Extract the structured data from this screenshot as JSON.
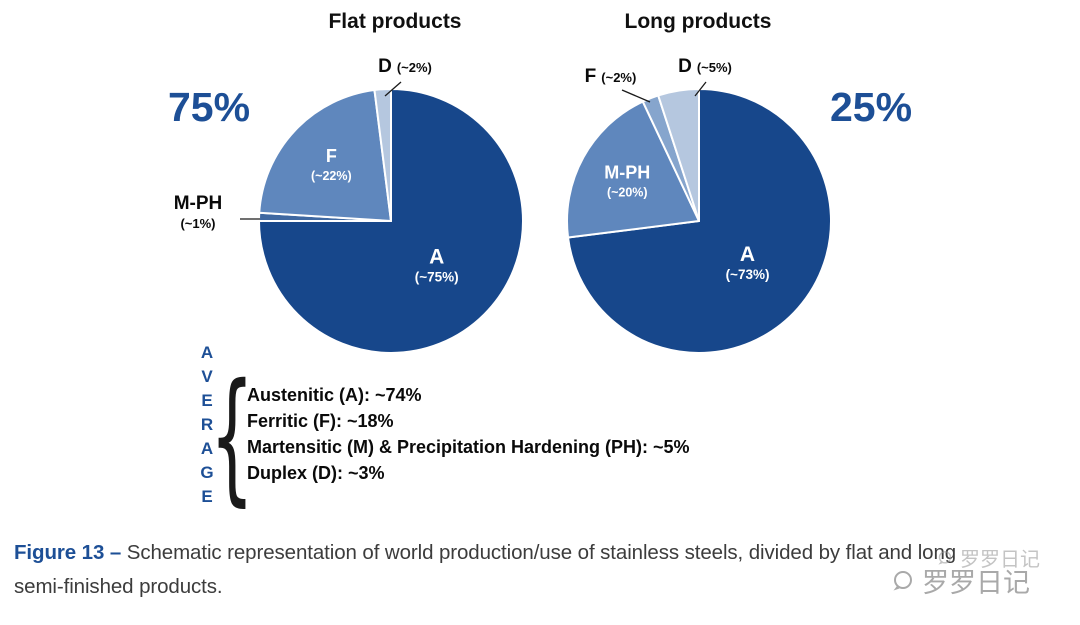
{
  "chart_data": [
    {
      "type": "pie",
      "title": "Flat products",
      "share_label": "75%",
      "direction": "clockwise",
      "start_angle_deg": 0,
      "slices": [
        {
          "id": "A",
          "label": "A",
          "sublabel": "(~75%)",
          "value": 75,
          "color": "#17478b",
          "label_inside": true
        },
        {
          "id": "M-PH",
          "label": "M-PH",
          "sublabel": "(~1%)",
          "value": 1,
          "color": "#3f68a1",
          "label_inside": false
        },
        {
          "id": "F",
          "label": "F",
          "sublabel": "(~22%)",
          "value": 22,
          "color": "#5f87bd",
          "label_inside": true
        },
        {
          "id": "D",
          "label": "D",
          "sublabel": "(~2%)",
          "value": 2,
          "color": "#b5c7df",
          "label_inside": false
        }
      ]
    },
    {
      "type": "pie",
      "title": "Long products",
      "share_label": "25%",
      "direction": "clockwise",
      "start_angle_deg": 0,
      "slices": [
        {
          "id": "A",
          "label": "A",
          "sublabel": "(~73%)",
          "value": 73,
          "color": "#17478b",
          "label_inside": true
        },
        {
          "id": "M-PH",
          "label": "M-PH",
          "sublabel": "(~20%)",
          "value": 20,
          "color": "#5f87bd",
          "label_inside": true
        },
        {
          "id": "F",
          "label": "F",
          "sublabel": "(~2%)",
          "value": 2,
          "color": "#86a5cd",
          "label_inside": false
        },
        {
          "id": "D",
          "label": "D",
          "sublabel": "(~5%)",
          "value": 5,
          "color": "#b5c7df",
          "label_inside": false
        }
      ]
    }
  ],
  "average": {
    "vertical_label": "AVERAGE",
    "brace": "{",
    "lines": [
      "Austenitic (A): ~74%",
      "Ferritic (F): ~18%",
      "Martensitic (M) & Precipitation Hardening (PH): ~5%",
      "Duplex (D): ~3%"
    ]
  },
  "caption": {
    "figure_label": "Figure 13 –",
    "line1": "Schematic representation of world production/use of stainless steels, divided by flat and long",
    "line2": "semi-finished products."
  },
  "watermark": {
    "text": "罗罗日记"
  },
  "colors": {
    "accent_navy": "#1d4f96",
    "pie_dark": "#17478b",
    "pie_medium": "#5f87bd",
    "pie_light": "#b5c7df"
  }
}
